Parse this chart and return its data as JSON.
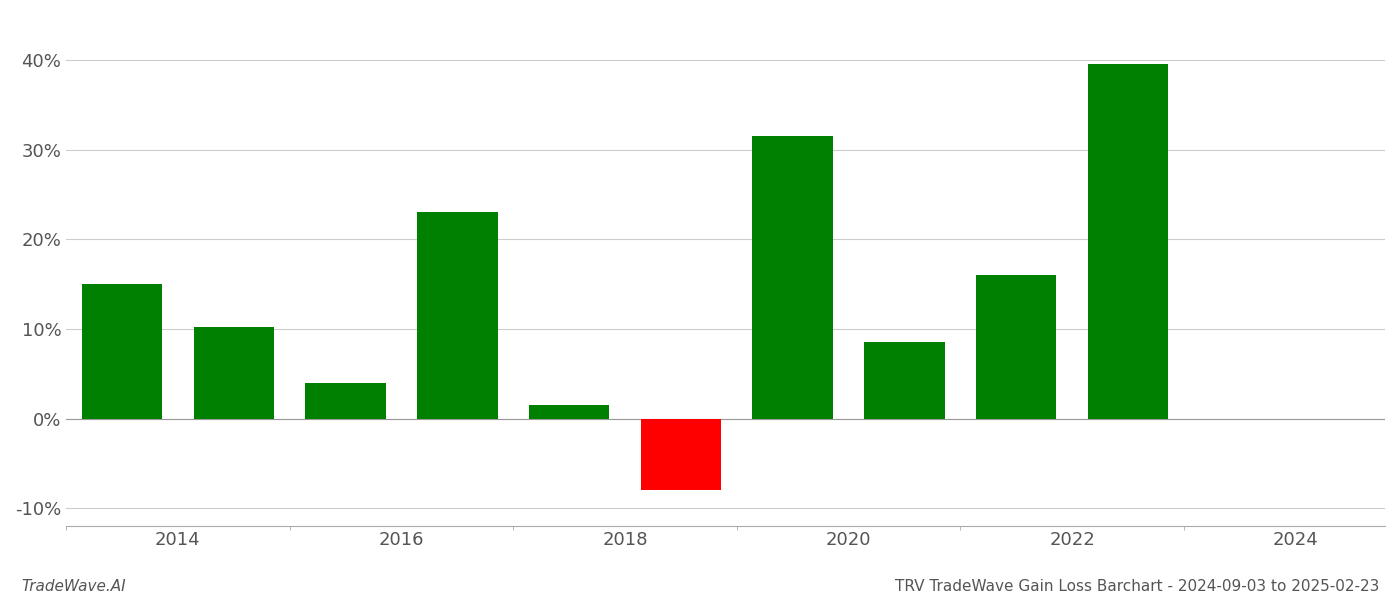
{
  "bar_positions": [
    2013.5,
    2014.5,
    2015.5,
    2016.5,
    2017.5,
    2018.5,
    2019.5,
    2020.5,
    2021.5,
    2022.5
  ],
  "values": [
    15.0,
    10.2,
    4.0,
    23.0,
    1.5,
    -8.0,
    31.5,
    8.5,
    16.0,
    39.5
  ],
  "bar_colors": [
    "#008000",
    "#008000",
    "#008000",
    "#008000",
    "#008000",
    "#ff0000",
    "#008000",
    "#008000",
    "#008000",
    "#008000"
  ],
  "title": "TRV TradeWave Gain Loss Barchart - 2024-09-03 to 2025-02-23",
  "watermark": "TradeWave.AI",
  "ylim": [
    -12,
    45
  ],
  "yticks": [
    -10,
    0,
    10,
    20,
    30,
    40
  ],
  "xticks": [
    2014,
    2016,
    2018,
    2020,
    2022,
    2024
  ],
  "xlim": [
    2013.0,
    2024.8
  ],
  "background_color": "#ffffff",
  "grid_color": "#cccccc",
  "bar_width": 0.72
}
